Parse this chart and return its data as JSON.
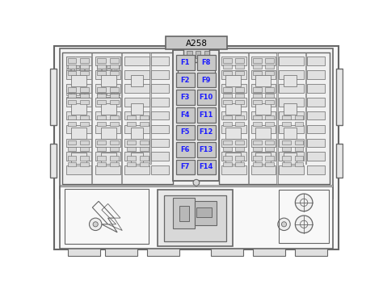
{
  "bg_color": "#ffffff",
  "lc": "#666666",
  "lc_dark": "#444444",
  "fuse_bg": "#c8c8c8",
  "fuse_text_color": "#1a1aff",
  "connector_label": "A258",
  "fuses_left": [
    "F1",
    "F2",
    "F3",
    "F4",
    "F5",
    "F6",
    "F7"
  ],
  "fuses_right": [
    "F8",
    "F9",
    "F10",
    "F11",
    "F12",
    "F13",
    "F14"
  ],
  "panel_fc": "#e8e8e8",
  "side_fc": "#f2f2f2",
  "outer_fc": "#f8f8f8"
}
